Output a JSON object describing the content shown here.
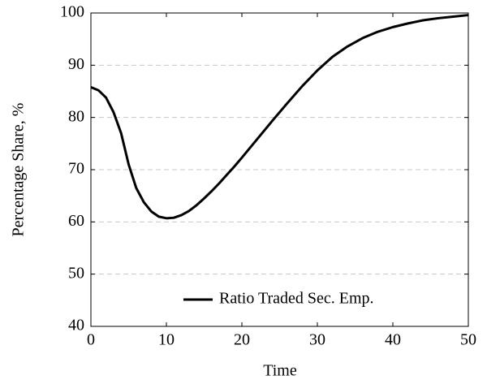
{
  "chart_data": {
    "type": "line",
    "x_label": "Time",
    "y_label": "Percentage Share, %",
    "x": [
      0,
      1,
      2,
      3,
      4,
      5,
      6,
      7,
      8,
      9,
      10,
      11,
      12,
      13,
      14,
      15,
      16,
      17,
      18,
      19,
      20,
      22,
      24,
      26,
      28,
      30,
      32,
      34,
      36,
      38,
      40,
      42,
      44,
      46,
      48,
      50
    ],
    "series": [
      {
        "name": "Ratio Traded Sec. Emp.",
        "color": "#000000",
        "values": [
          85.8,
          85.2,
          83.8,
          81,
          77,
          71,
          66.5,
          63.8,
          62,
          61,
          60.7,
          60.8,
          61.3,
          62.1,
          63.2,
          64.5,
          65.9,
          67.4,
          69,
          70.6,
          72.3,
          75.8,
          79.3,
          82.7,
          86,
          89,
          91.6,
          93.6,
          95.2,
          96.4,
          97.3,
          98,
          98.6,
          99,
          99.3,
          99.6
        ]
      }
    ],
    "xlim": [
      0,
      50
    ],
    "xticks": [
      0,
      10,
      20,
      30,
      40,
      50
    ],
    "ylim": [
      40,
      100
    ],
    "yticks": [
      40,
      50,
      60,
      70,
      80,
      90,
      100
    ],
    "grid": true,
    "legend": "lower right"
  }
}
